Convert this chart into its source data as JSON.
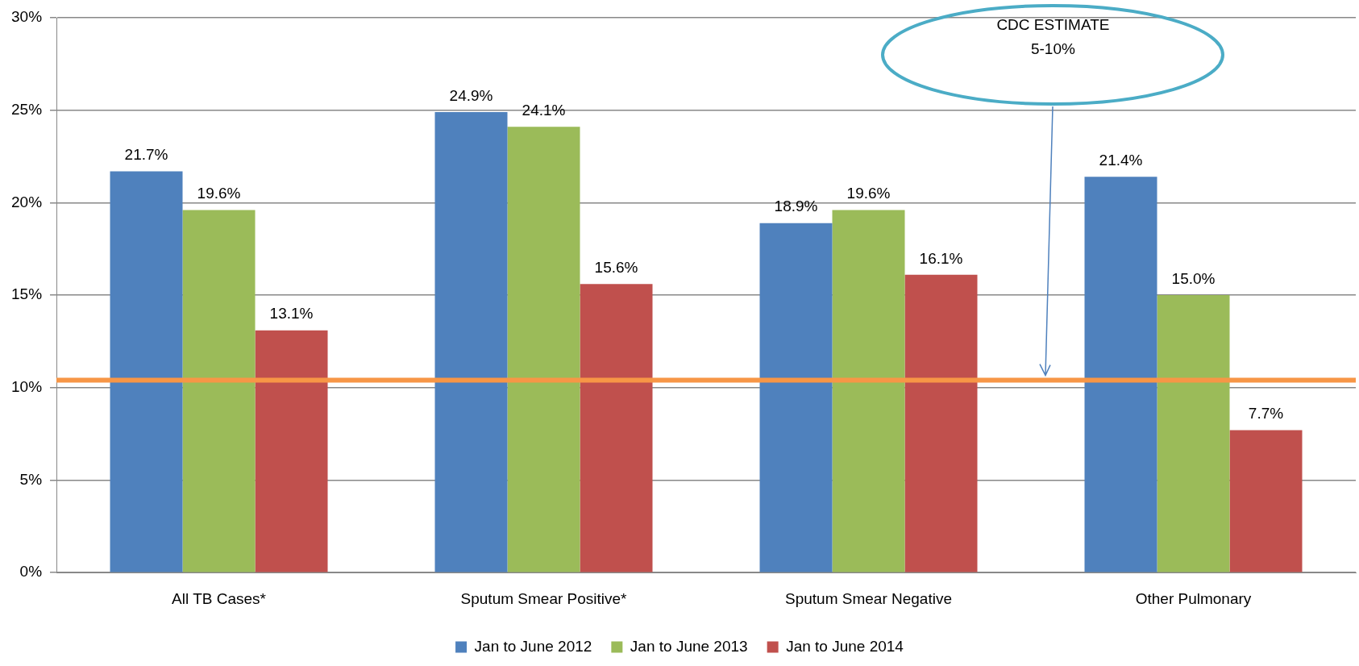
{
  "chart_data": {
    "type": "bar",
    "categories": [
      "All TB Cases*",
      "Sputum Smear Positive*",
      "Sputum Smear Negative",
      "Other Pulmonary"
    ],
    "series": [
      {
        "name": "Jan to June 2012",
        "color": "#4f81bd",
        "values": [
          21.7,
          24.9,
          18.9,
          21.4
        ],
        "value_labels": [
          "21.7%",
          "24.9%",
          "18.9%",
          "21.4%"
        ]
      },
      {
        "name": "Jan to June 2013",
        "color": "#9bbb59",
        "values": [
          19.6,
          24.1,
          19.6,
          15.0
        ],
        "value_labels": [
          "19.6%",
          "24.1%",
          "19.6%",
          "15.0%"
        ]
      },
      {
        "name": "Jan to June 2014",
        "color": "#c0504d",
        "values": [
          13.1,
          15.6,
          16.1,
          7.7
        ],
        "value_labels": [
          "13.1%",
          "15.6%",
          "16.1%",
          "7.7%"
        ]
      }
    ],
    "ylim": [
      0,
      30
    ],
    "yticks": [
      {
        "value": 0,
        "label": "0%"
      },
      {
        "value": 5,
        "label": "5%"
      },
      {
        "value": 10,
        "label": "10%"
      },
      {
        "value": 15,
        "label": "15%"
      },
      {
        "value": 20,
        "label": "20%"
      },
      {
        "value": 25,
        "label": "25%"
      },
      {
        "value": 30,
        "label": "30%"
      }
    ],
    "grid": "y",
    "legend": "bottom",
    "ref_lines": [
      {
        "axis": "y",
        "value": 10.4,
        "color": "#f79646"
      }
    ],
    "annotations": [
      "CDC ESTIMATE\n5-10%"
    ]
  }
}
